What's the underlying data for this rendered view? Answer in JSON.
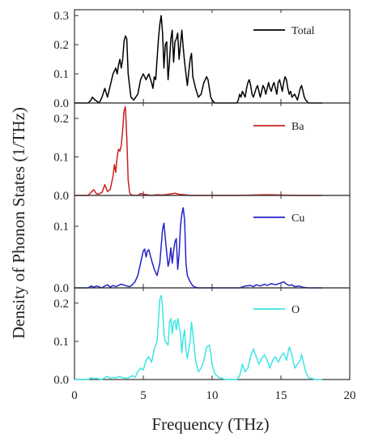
{
  "chart_data": {
    "type": "line",
    "xlabel": "Frequency (THz)",
    "ylabel": "Density of Phonon States (1/THz)",
    "xlim": [
      0,
      20
    ],
    "x_ticks": [
      "0",
      "5",
      "10",
      "15",
      "20"
    ],
    "grid": false,
    "legend_placement": "top-right",
    "panels": [
      {
        "name": "Total",
        "color": "#000000",
        "ylim": [
          0,
          0.32
        ],
        "y_ticks": [
          "0.0",
          "0.1",
          "0.2",
          "0.3"
        ],
        "y_tick_values": [
          0,
          0.1,
          0.2,
          0.3
        ],
        "x": [
          0,
          1.0,
          1.2,
          1.3,
          1.5,
          1.8,
          2.0,
          2.2,
          2.4,
          2.6,
          2.8,
          3.0,
          3.1,
          3.2,
          3.3,
          3.4,
          3.5,
          3.6,
          3.7,
          3.8,
          3.9,
          4.1,
          4.3,
          4.6,
          4.8,
          5.0,
          5.2,
          5.4,
          5.6,
          5.7,
          5.8,
          5.9,
          6.1,
          6.2,
          6.3,
          6.4,
          6.5,
          6.6,
          6.7,
          6.8,
          6.9,
          7.0,
          7.1,
          7.2,
          7.3,
          7.4,
          7.5,
          7.6,
          7.7,
          7.8,
          7.9,
          8.0,
          8.2,
          8.4,
          8.5,
          8.6,
          8.8,
          9.0,
          9.2,
          9.4,
          9.6,
          9.7,
          9.8,
          9.9,
          10.0,
          10.2,
          10.5,
          11.0,
          11.5,
          11.8,
          11.9,
          12.0,
          12.1,
          12.2,
          12.4,
          12.5,
          12.6,
          12.7,
          12.8,
          12.9,
          13.0,
          13.2,
          13.3,
          13.4,
          13.5,
          13.6,
          13.7,
          13.8,
          13.9,
          14.0,
          14.1,
          14.2,
          14.3,
          14.4,
          14.5,
          14.6,
          14.7,
          14.8,
          14.9,
          15.0,
          15.1,
          15.2,
          15.3,
          15.4,
          15.5,
          15.6,
          15.7,
          15.8,
          16.0,
          16.2,
          16.4,
          16.5,
          16.6,
          16.7,
          16.8,
          17.0,
          17.5,
          18.0
        ],
        "y": [
          0,
          0,
          0.01,
          0.02,
          0.01,
          0,
          0.02,
          0.05,
          0.02,
          0.06,
          0.1,
          0.12,
          0.1,
          0.13,
          0.15,
          0.12,
          0.15,
          0.21,
          0.23,
          0.22,
          0.1,
          0.02,
          0.01,
          0.03,
          0.08,
          0.1,
          0.08,
          0.1,
          0.07,
          0.05,
          0.09,
          0.08,
          0.22,
          0.27,
          0.3,
          0.24,
          0.12,
          0.2,
          0.21,
          0.08,
          0.14,
          0.22,
          0.25,
          0.14,
          0.21,
          0.22,
          0.24,
          0.15,
          0.2,
          0.25,
          0.19,
          0.14,
          0.06,
          0.15,
          0.17,
          0.09,
          0.05,
          0.02,
          0.03,
          0.07,
          0.09,
          0.08,
          0.05,
          0.02,
          0.01,
          0,
          0,
          0,
          0,
          0,
          0.01,
          0.03,
          0.02,
          0.04,
          0.02,
          0.05,
          0.07,
          0.08,
          0.06,
          0.03,
          0.02,
          0.05,
          0.06,
          0.04,
          0.02,
          0.04,
          0.06,
          0.05,
          0.03,
          0.05,
          0.07,
          0.05,
          0.04,
          0.06,
          0.07,
          0.05,
          0.03,
          0.07,
          0.08,
          0.06,
          0.04,
          0.07,
          0.09,
          0.08,
          0.05,
          0.03,
          0.04,
          0.02,
          0.03,
          0.01,
          0.05,
          0.06,
          0.04,
          0.02,
          0.01,
          0,
          0,
          0
        ]
      },
      {
        "name": "Ba",
        "color": "#cc2020",
        "ylim": [
          0,
          0.24
        ],
        "y_ticks": [
          "0.0",
          "0.1",
          "0.2"
        ],
        "y_tick_values": [
          0,
          0.1,
          0.2
        ],
        "x": [
          0,
          1.0,
          1.2,
          1.4,
          1.6,
          1.8,
          2.0,
          2.2,
          2.4,
          2.6,
          2.8,
          2.9,
          3.0,
          3.1,
          3.2,
          3.3,
          3.4,
          3.5,
          3.6,
          3.7,
          3.8,
          3.9,
          4.0,
          4.1,
          4.3,
          4.6,
          4.8,
          5.0,
          5.3,
          5.6,
          6.0,
          6.3,
          6.6,
          7.0,
          7.3,
          7.6,
          8.0,
          8.5,
          9.0,
          12.0,
          13.0,
          14.0,
          15.0,
          16.0,
          17.0,
          18.0
        ],
        "y": [
          0,
          0,
          0.008,
          0.015,
          0.004,
          0.004,
          0.008,
          0.028,
          0.01,
          0.016,
          0.05,
          0.08,
          0.06,
          0.1,
          0.12,
          0.115,
          0.13,
          0.17,
          0.22,
          0.23,
          0.15,
          0.04,
          0.008,
          0.002,
          0,
          0,
          0.005,
          0.003,
          0.002,
          0,
          0.002,
          0.001,
          0.002,
          0.004,
          0.006,
          0.003,
          0.002,
          0,
          0,
          0,
          0.001,
          0.002,
          0.001,
          0,
          0,
          0
        ]
      },
      {
        "name": "Cu",
        "color": "#2323c8",
        "ylim": [
          0,
          0.15
        ],
        "y_ticks": [
          "0.0",
          "0.1"
        ],
        "y_tick_values": [
          0,
          0.1
        ],
        "x": [
          0,
          1.0,
          1.2,
          1.4,
          1.6,
          2.0,
          2.2,
          2.4,
          2.6,
          2.8,
          3.0,
          3.4,
          3.8,
          4.0,
          4.2,
          4.4,
          4.6,
          4.8,
          5.0,
          5.1,
          5.2,
          5.3,
          5.4,
          5.6,
          5.8,
          6.0,
          6.2,
          6.4,
          6.5,
          6.6,
          6.8,
          6.9,
          7.0,
          7.1,
          7.2,
          7.3,
          7.4,
          7.5,
          7.6,
          7.7,
          7.8,
          7.9,
          8.0,
          8.1,
          8.2,
          8.4,
          8.6,
          8.8,
          9.0,
          10.0,
          11.0,
          12.0,
          12.4,
          12.8,
          13.0,
          13.2,
          13.5,
          13.8,
          14.0,
          14.3,
          14.6,
          15.0,
          15.2,
          15.4,
          15.6,
          15.8,
          16.0,
          16.3,
          16.6,
          17.0,
          18.0
        ],
        "y": [
          0,
          0,
          0.003,
          0.001,
          0.003,
          0,
          0.003,
          0.005,
          0.001,
          0.004,
          0.002,
          0.006,
          0.003,
          0.002,
          0.005,
          0.01,
          0.02,
          0.04,
          0.06,
          0.063,
          0.05,
          0.06,
          0.062,
          0.045,
          0.03,
          0.02,
          0.04,
          0.095,
          0.105,
          0.08,
          0.035,
          0.045,
          0.065,
          0.04,
          0.06,
          0.075,
          0.08,
          0.03,
          0.055,
          0.1,
          0.12,
          0.13,
          0.11,
          0.04,
          0.02,
          0.01,
          0.003,
          0.001,
          0,
          0,
          0,
          0,
          0.003,
          0.004,
          0.002,
          0.005,
          0.003,
          0.006,
          0.004,
          0.007,
          0.005,
          0.008,
          0.01,
          0.006,
          0.004,
          0.005,
          0.002,
          0.003,
          0.001,
          0,
          0
        ]
      },
      {
        "name": "O",
        "color": "#3ee5e5",
        "ylim": [
          0,
          0.24
        ],
        "y_ticks": [
          "0.0",
          "0.1",
          "0.2"
        ],
        "y_tick_values": [
          0,
          0.1,
          0.2
        ],
        "x": [
          0,
          1.0,
          1.2,
          1.4,
          1.6,
          2.0,
          2.2,
          2.4,
          2.6,
          2.8,
          3.0,
          3.2,
          3.5,
          3.8,
          4.0,
          4.2,
          4.4,
          4.6,
          4.8,
          5.0,
          5.2,
          5.4,
          5.6,
          5.8,
          6.0,
          6.2,
          6.3,
          6.4,
          6.5,
          6.6,
          6.8,
          6.9,
          7.0,
          7.1,
          7.2,
          7.3,
          7.4,
          7.5,
          7.6,
          7.7,
          7.8,
          7.9,
          8.0,
          8.1,
          8.2,
          8.4,
          8.5,
          8.6,
          8.8,
          9.0,
          9.2,
          9.4,
          9.6,
          9.8,
          9.9,
          10.0,
          10.2,
          10.5,
          11.0,
          11.5,
          11.8,
          12.0,
          12.2,
          12.4,
          12.6,
          12.8,
          13.0,
          13.2,
          13.4,
          13.6,
          13.8,
          14.0,
          14.2,
          14.4,
          14.6,
          14.8,
          15.0,
          15.2,
          15.4,
          15.6,
          15.8,
          16.0,
          16.2,
          16.4,
          16.5,
          16.6,
          16.8,
          17.0,
          17.5,
          18.0
        ],
        "y": [
          0,
          0,
          0.005,
          0.002,
          0.003,
          0,
          0.005,
          0.008,
          0.003,
          0.006,
          0.004,
          0.008,
          0.005,
          0.003,
          0.006,
          0.01,
          0.006,
          0.02,
          0.03,
          0.025,
          0.05,
          0.06,
          0.045,
          0.08,
          0.1,
          0.21,
          0.22,
          0.19,
          0.12,
          0.1,
          0.09,
          0.15,
          0.16,
          0.12,
          0.15,
          0.155,
          0.13,
          0.16,
          0.14,
          0.12,
          0.07,
          0.11,
          0.13,
          0.08,
          0.055,
          0.1,
          0.15,
          0.12,
          0.05,
          0.02,
          0.03,
          0.05,
          0.085,
          0.09,
          0.07,
          0.04,
          0.015,
          0.005,
          0,
          0,
          0,
          0.01,
          0.04,
          0.02,
          0.03,
          0.06,
          0.08,
          0.06,
          0.04,
          0.055,
          0.065,
          0.05,
          0.03,
          0.05,
          0.06,
          0.045,
          0.06,
          0.07,
          0.05,
          0.085,
          0.065,
          0.03,
          0.04,
          0.05,
          0.065,
          0.05,
          0.02,
          0.005,
          0,
          0
        ]
      }
    ]
  }
}
